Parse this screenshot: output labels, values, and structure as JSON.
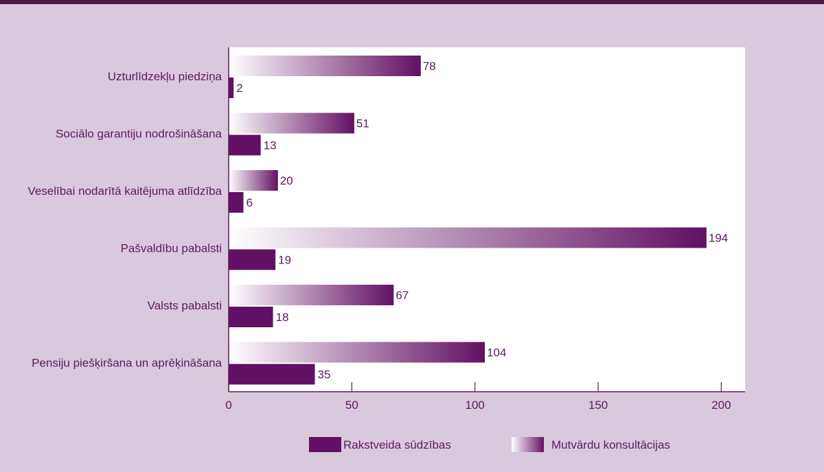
{
  "colors": {
    "background": "#d9c9dc",
    "plot_background": "#ffffff",
    "written": "#611063",
    "oral_dark": "#621063",
    "oral_light": "#ffffff",
    "text": "#5a1b5e",
    "axis": "#5a1b5e"
  },
  "chart_data": {
    "type": "bar",
    "orientation": "horizontal",
    "categories": [
      "Uzturlīdzekļu piedziņa",
      "Sociālo garantiju nodrošināšana",
      "Veselībai nodarītā kaitējuma atlīdzība",
      "Pašvaldību pabalsti",
      "Valsts pabalsti",
      "Pensiju piešķiršana un aprēķināšana"
    ],
    "series": [
      {
        "name": "Mutvārdu konsultācijas",
        "values": [
          78,
          51,
          20,
          194,
          67,
          104
        ],
        "style": "gradient"
      },
      {
        "name": "Rakstveida sūdzības",
        "values": [
          2,
          13,
          6,
          19,
          18,
          35
        ],
        "style": "solid"
      }
    ],
    "xlim": [
      0,
      200
    ],
    "xticks": [
      "0",
      "50",
      "100",
      "150",
      "200"
    ],
    "grid": false,
    "legend_placement": "bottom",
    "legend": [
      {
        "name": "Rakstveida sūdzības",
        "style": "solid"
      },
      {
        "name": "Mutvārdu konsultācijas",
        "style": "gradient"
      }
    ]
  }
}
